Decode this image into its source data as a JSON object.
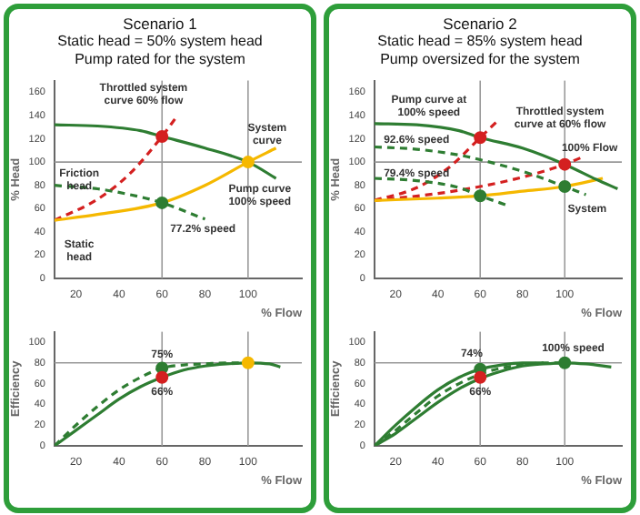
{
  "chart_data": [
    {
      "type": "line",
      "title": "Scenario 1",
      "subtitle": "Static head = 50% system head\nPump rated for the system",
      "xlabel": "% Flow",
      "ylabel": "% Head",
      "xlim": [
        10,
        125
      ],
      "xticks": [
        20,
        40,
        60,
        80,
        100
      ],
      "ylim": [
        0,
        170
      ],
      "yticks": [
        0,
        20,
        40,
        60,
        80,
        100,
        120,
        140,
        160
      ],
      "grid": false,
      "series": [
        {
          "type": "line",
          "x": [
            10,
            30,
            50,
            60,
            80,
            100,
            113
          ],
          "values": [
            132,
            131,
            127,
            122,
            112,
            100,
            86
          ],
          "color": "#2e7d32"
        },
        {
          "type": "line",
          "x": [
            10,
            30,
            50,
            60,
            80
          ],
          "values": [
            80,
            77,
            70,
            65,
            51
          ],
          "color": "#2e7d32",
          "line_style": "dashed"
        },
        {
          "type": "line",
          "x": [
            10,
            30,
            60,
            80,
            100,
            113
          ],
          "values": [
            50,
            55,
            65,
            80,
            100,
            112
          ],
          "color": "#f5b800"
        },
        {
          "type": "line",
          "x": [
            10,
            30,
            45,
            60,
            66
          ],
          "values": [
            50,
            68,
            90,
            122,
            137
          ],
          "color": "#d42020",
          "line_style": "dashed"
        },
        {
          "type": "scatter",
          "x": [
            60,
            60,
            100
          ],
          "values": [
            122,
            65,
            100
          ],
          "colors": [
            "#d42020",
            "#2e7d32",
            "#f5b800"
          ]
        }
      ],
      "ref_lines": [
        {
          "axis": "y",
          "value": 100,
          "color": "#999999"
        },
        {
          "axis": "x",
          "value": 60,
          "color": "#999999"
        },
        {
          "axis": "x",
          "value": 100,
          "color": "#999999"
        }
      ],
      "annotations": [
        "Throttled system curve 60% flow",
        "System curve",
        "Pump curve 100% speed",
        "77.2% speed",
        "Friction head",
        "Static head"
      ]
    },
    {
      "type": "line",
      "xlabel": "% Flow",
      "ylabel": "Efficiency",
      "xlim": [
        10,
        125
      ],
      "xticks": [
        20,
        40,
        60,
        80,
        100
      ],
      "ylim": [
        0,
        110
      ],
      "yticks": [
        0,
        20,
        40,
        60,
        80,
        100
      ],
      "grid": false,
      "series": [
        {
          "type": "line",
          "x": [
            10,
            20,
            30,
            40,
            50,
            60,
            70,
            80,
            90,
            100,
            110,
            115
          ],
          "values": [
            0,
            15,
            30,
            45,
            57,
            66,
            73,
            77,
            79,
            80,
            79,
            76
          ],
          "color": "#2e7d32"
        },
        {
          "type": "line",
          "x": [
            10,
            20,
            30,
            40,
            50,
            60,
            70,
            80,
            90,
            100
          ],
          "values": [
            0,
            20,
            38,
            54,
            66,
            75,
            78,
            79,
            80,
            80
          ],
          "color": "#2e7d32",
          "line_style": "dashed"
        },
        {
          "type": "scatter",
          "x": [
            60,
            60,
            100
          ],
          "values": [
            75,
            66,
            80
          ],
          "colors": [
            "#2e7d32",
            "#d42020",
            "#f5b800"
          ]
        }
      ],
      "ref_lines": [
        {
          "axis": "y",
          "value": 80,
          "color": "#999999"
        },
        {
          "axis": "x",
          "value": 60,
          "color": "#999999"
        },
        {
          "axis": "x",
          "value": 100,
          "color": "#999999"
        }
      ],
      "annotations": [
        {
          "text": "75%",
          "x": 60,
          "y": 88
        },
        {
          "text": "66%",
          "x": 60,
          "y": 52
        }
      ]
    },
    {
      "type": "line",
      "title": "Scenario 2",
      "subtitle": "Static head = 85% system head\nPump oversized for the system",
      "xlabel": "% Flow",
      "ylabel": "% Head",
      "xlim": [
        10,
        127
      ],
      "xticks": [
        20,
        40,
        60,
        80,
        100
      ],
      "ylim": [
        0,
        170
      ],
      "yticks": [
        0,
        20,
        40,
        60,
        80,
        100,
        120,
        140,
        160
      ],
      "grid": false,
      "series": [
        {
          "type": "line",
          "x": [
            10,
            30,
            50,
            60,
            80,
            100,
            115,
            125
          ],
          "values": [
            133,
            132,
            127,
            121,
            112,
            98,
            85,
            77
          ],
          "color": "#2e7d32"
        },
        {
          "type": "line",
          "x": [
            10,
            30,
            50,
            60,
            80,
            100,
            110
          ],
          "values": [
            113,
            111,
            106,
            102,
            92,
            79,
            72
          ],
          "color": "#2e7d32",
          "line_style": "dashed"
        },
        {
          "type": "line",
          "x": [
            10,
            30,
            50,
            60,
            74
          ],
          "values": [
            86,
            84,
            78,
            71,
            62
          ],
          "color": "#2e7d32",
          "line_style": "dashed"
        },
        {
          "type": "line",
          "x": [
            10,
            40,
            60,
            80,
            100,
            118
          ],
          "values": [
            67,
            69,
            71,
            75,
            79,
            86
          ],
          "color": "#f5b800"
        },
        {
          "type": "line",
          "x": [
            10,
            30,
            45,
            60,
            68
          ],
          "values": [
            67,
            78,
            95,
            121,
            135
          ],
          "color": "#d42020",
          "line_style": "dashed"
        },
        {
          "type": "line",
          "x": [
            10,
            40,
            60,
            80,
            100,
            108
          ],
          "values": [
            67,
            73,
            79,
            87,
            98,
            104
          ],
          "color": "#d42020",
          "line_style": "dashed"
        },
        {
          "type": "scatter",
          "x": [
            60,
            100,
            60,
            100
          ],
          "values": [
            121,
            98,
            71,
            79
          ],
          "colors": [
            "#d42020",
            "#d42020",
            "#2e7d32",
            "#2e7d32"
          ]
        }
      ],
      "ref_lines": [
        {
          "axis": "y",
          "value": 100,
          "color": "#999999"
        },
        {
          "axis": "x",
          "value": 60,
          "color": "#999999"
        },
        {
          "axis": "x",
          "value": 100,
          "color": "#999999"
        }
      ],
      "annotations": [
        "Pump curve at 100% speed",
        "92.6% speed",
        "79.4% speed",
        "Throttled system curve at 60% flow",
        "100% Flow",
        "System"
      ]
    },
    {
      "type": "line",
      "xlabel": "% Flow",
      "ylabel": "Efficiency",
      "xlim": [
        10,
        127
      ],
      "xticks": [
        20,
        40,
        60,
        80,
        100
      ],
      "ylim": [
        0,
        110
      ],
      "yticks": [
        0,
        20,
        40,
        60,
        80,
        100
      ],
      "grid": false,
      "series": [
        {
          "type": "line",
          "x": [
            10,
            20,
            30,
            40,
            50,
            60,
            70,
            80,
            90,
            100,
            110,
            122
          ],
          "values": [
            0,
            12,
            27,
            42,
            55,
            65,
            72,
            77,
            79,
            80,
            79,
            76
          ],
          "color": "#2e7d32"
        },
        {
          "type": "line",
          "x": [
            10,
            20,
            30,
            40,
            50,
            60,
            70,
            80,
            90,
            100
          ],
          "values": [
            0,
            15,
            32,
            48,
            60,
            69,
            75,
            78,
            80,
            80
          ],
          "color": "#2e7d32",
          "line_style": "dashed"
        },
        {
          "type": "line",
          "x": [
            10,
            20,
            30,
            40,
            50,
            60,
            70,
            80,
            90
          ],
          "values": [
            0,
            20,
            38,
            54,
            66,
            74,
            78,
            80,
            80
          ],
          "color": "#2e7d32"
        },
        {
          "type": "scatter",
          "x": [
            60,
            60,
            100
          ],
          "values": [
            74,
            66,
            80
          ],
          "colors": [
            "#2e7d32",
            "#d42020",
            "#2e7d32"
          ]
        }
      ],
      "ref_lines": [
        {
          "axis": "y",
          "value": 80,
          "color": "#999999"
        },
        {
          "axis": "x",
          "value": 60,
          "color": "#999999"
        },
        {
          "axis": "x",
          "value": 100,
          "color": "#999999"
        }
      ],
      "annotations": [
        {
          "text": "74%",
          "x": 56,
          "y": 89
        },
        {
          "text": "66%",
          "x": 60,
          "y": 52
        },
        {
          "text": "100% speed",
          "x": 104,
          "y": 94
        }
      ]
    }
  ]
}
